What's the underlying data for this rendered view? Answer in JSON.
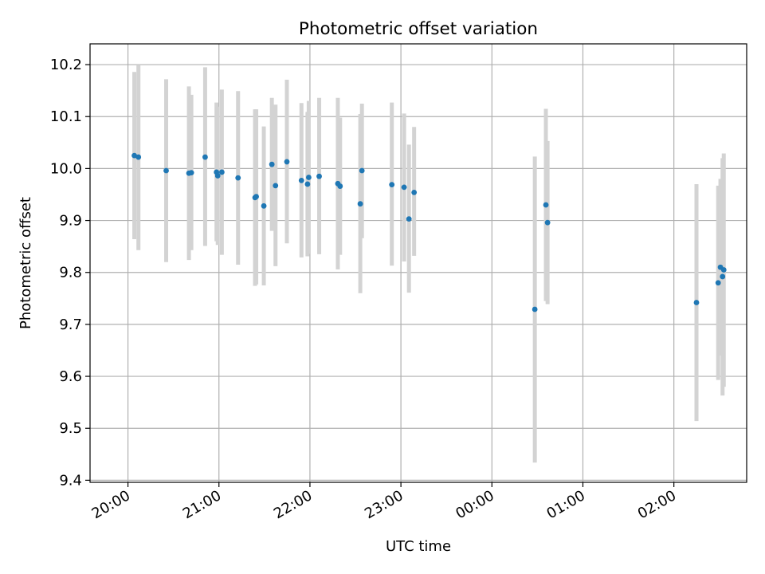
{
  "chart_data": {
    "type": "scatter",
    "title": "Photometric offset variation",
    "xlabel": "UTC time",
    "ylabel": "Photometric offset",
    "x_unit": "minutes since 20:00 UTC",
    "xlim": [
      -25,
      408
    ],
    "ylim": [
      9.396,
      10.24
    ],
    "grid": true,
    "legend": "none",
    "xticks": [
      {
        "value": 0,
        "label": "20:00"
      },
      {
        "value": 60,
        "label": "21:00"
      },
      {
        "value": 120,
        "label": "22:00"
      },
      {
        "value": 180,
        "label": "23:00"
      },
      {
        "value": 240,
        "label": "00:00"
      },
      {
        "value": 300,
        "label": "01:00"
      },
      {
        "value": 360,
        "label": "02:00"
      }
    ],
    "yticks": [
      {
        "value": 9.4,
        "label": "9.4"
      },
      {
        "value": 9.5,
        "label": "9.5"
      },
      {
        "value": 9.6,
        "label": "9.6"
      },
      {
        "value": 9.7,
        "label": "9.7"
      },
      {
        "value": 9.8,
        "label": "9.8"
      },
      {
        "value": 9.9,
        "label": "9.9"
      },
      {
        "value": 10.0,
        "label": "10.0"
      },
      {
        "value": 10.1,
        "label": "10.1"
      },
      {
        "value": 10.2,
        "label": "10.2"
      }
    ],
    "series": [
      {
        "name": "offset",
        "point_color": "#1f77b4",
        "errorbar_color": "#d3d3d3",
        "points": [
          {
            "x": 4.2,
            "y": 10.025,
            "low": 9.864,
            "high": 10.186
          },
          {
            "x": 6.9,
            "y": 10.022,
            "low": 9.843,
            "high": 10.2
          },
          {
            "x": 25.2,
            "y": 9.996,
            "low": 9.82,
            "high": 10.172
          },
          {
            "x": 40.2,
            "y": 9.991,
            "low": 9.824,
            "high": 10.158
          },
          {
            "x": 41.8,
            "y": 9.992,
            "low": 9.843,
            "high": 10.142
          },
          {
            "x": 50.9,
            "y": 10.022,
            "low": 9.851,
            "high": 10.195
          },
          {
            "x": 58.4,
            "y": 9.993,
            "low": 9.86,
            "high": 10.127
          },
          {
            "x": 59.2,
            "y": 9.986,
            "low": 9.853,
            "high": 10.119
          },
          {
            "x": 61.9,
            "y": 9.993,
            "low": 9.834,
            "high": 10.152
          },
          {
            "x": 72.6,
            "y": 9.982,
            "low": 9.815,
            "high": 10.149
          },
          {
            "x": 83.8,
            "y": 9.944,
            "low": 9.774,
            "high": 10.114
          },
          {
            "x": 84.6,
            "y": 9.946,
            "low": 9.777,
            "high": 10.114
          },
          {
            "x": 89.6,
            "y": 9.928,
            "low": 9.775,
            "high": 10.081
          },
          {
            "x": 94.9,
            "y": 10.008,
            "low": 9.88,
            "high": 10.136
          },
          {
            "x": 97.3,
            "y": 9.967,
            "low": 9.812,
            "high": 10.123
          },
          {
            "x": 104.8,
            "y": 10.013,
            "low": 9.856,
            "high": 10.171
          },
          {
            "x": 114.4,
            "y": 9.977,
            "low": 9.829,
            "high": 10.126
          },
          {
            "x": 118.4,
            "y": 9.97,
            "low": 9.831,
            "high": 10.109
          },
          {
            "x": 119.2,
            "y": 9.983,
            "low": 9.836,
            "high": 10.13
          },
          {
            "x": 126.1,
            "y": 9.985,
            "low": 9.835,
            "high": 10.136
          },
          {
            "x": 138.4,
            "y": 9.971,
            "low": 9.806,
            "high": 10.136
          },
          {
            "x": 139.9,
            "y": 9.966,
            "low": 9.834,
            "high": 10.098
          },
          {
            "x": 153.2,
            "y": 9.932,
            "low": 9.76,
            "high": 10.105
          },
          {
            "x": 154.3,
            "y": 9.996,
            "low": 9.866,
            "high": 10.125
          },
          {
            "x": 174.0,
            "y": 9.969,
            "low": 9.813,
            "high": 10.127
          },
          {
            "x": 182.1,
            "y": 9.964,
            "low": 9.821,
            "high": 10.106
          },
          {
            "x": 185.3,
            "y": 9.903,
            "low": 9.761,
            "high": 10.046
          },
          {
            "x": 188.7,
            "y": 9.954,
            "low": 9.832,
            "high": 10.08
          },
          {
            "x": 268.3,
            "y": 9.729,
            "low": 9.434,
            "high": 10.023
          },
          {
            "x": 275.6,
            "y": 9.93,
            "low": 9.745,
            "high": 10.115
          },
          {
            "x": 276.7,
            "y": 9.896,
            "low": 9.739,
            "high": 10.053
          },
          {
            "x": 374.9,
            "y": 9.742,
            "low": 9.514,
            "high": 9.97
          },
          {
            "x": 389.2,
            "y": 9.78,
            "low": 9.593,
            "high": 9.967
          },
          {
            "x": 390.7,
            "y": 9.81,
            "low": 9.64,
            "high": 9.98
          },
          {
            "x": 392.1,
            "y": 9.792,
            "low": 9.563,
            "high": 10.02
          },
          {
            "x": 392.9,
            "y": 9.805,
            "low": 9.58,
            "high": 10.029
          }
        ]
      }
    ]
  }
}
